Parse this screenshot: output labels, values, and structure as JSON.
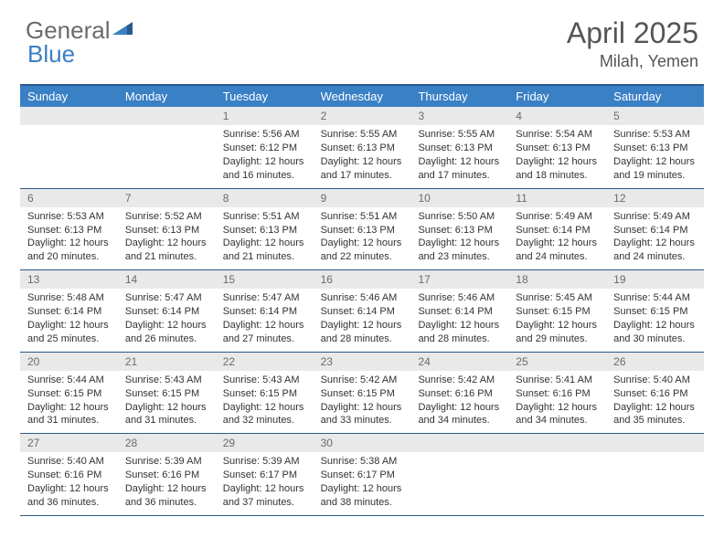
{
  "brand": {
    "name_a": "General",
    "name_b": "Blue"
  },
  "title": "April 2025",
  "location": "Milah, Yemen",
  "colors": {
    "header_bg": "#3a80c5",
    "header_text": "#ffffff",
    "border": "#2a5a8a",
    "daynum_bg": "#e9e9e9",
    "daynum_text": "#6b6b6b",
    "body_text": "#333333"
  },
  "dow": [
    "Sunday",
    "Monday",
    "Tuesday",
    "Wednesday",
    "Thursday",
    "Friday",
    "Saturday"
  ],
  "weeks": [
    [
      {
        "n": "",
        "sr": "",
        "ss": "",
        "dl": ""
      },
      {
        "n": "",
        "sr": "",
        "ss": "",
        "dl": ""
      },
      {
        "n": "1",
        "sr": "Sunrise: 5:56 AM",
        "ss": "Sunset: 6:12 PM",
        "dl": "Daylight: 12 hours and 16 minutes."
      },
      {
        "n": "2",
        "sr": "Sunrise: 5:55 AM",
        "ss": "Sunset: 6:13 PM",
        "dl": "Daylight: 12 hours and 17 minutes."
      },
      {
        "n": "3",
        "sr": "Sunrise: 5:55 AM",
        "ss": "Sunset: 6:13 PM",
        "dl": "Daylight: 12 hours and 17 minutes."
      },
      {
        "n": "4",
        "sr": "Sunrise: 5:54 AM",
        "ss": "Sunset: 6:13 PM",
        "dl": "Daylight: 12 hours and 18 minutes."
      },
      {
        "n": "5",
        "sr": "Sunrise: 5:53 AM",
        "ss": "Sunset: 6:13 PM",
        "dl": "Daylight: 12 hours and 19 minutes."
      }
    ],
    [
      {
        "n": "6",
        "sr": "Sunrise: 5:53 AM",
        "ss": "Sunset: 6:13 PM",
        "dl": "Daylight: 12 hours and 20 minutes."
      },
      {
        "n": "7",
        "sr": "Sunrise: 5:52 AM",
        "ss": "Sunset: 6:13 PM",
        "dl": "Daylight: 12 hours and 21 minutes."
      },
      {
        "n": "8",
        "sr": "Sunrise: 5:51 AM",
        "ss": "Sunset: 6:13 PM",
        "dl": "Daylight: 12 hours and 21 minutes."
      },
      {
        "n": "9",
        "sr": "Sunrise: 5:51 AM",
        "ss": "Sunset: 6:13 PM",
        "dl": "Daylight: 12 hours and 22 minutes."
      },
      {
        "n": "10",
        "sr": "Sunrise: 5:50 AM",
        "ss": "Sunset: 6:13 PM",
        "dl": "Daylight: 12 hours and 23 minutes."
      },
      {
        "n": "11",
        "sr": "Sunrise: 5:49 AM",
        "ss": "Sunset: 6:14 PM",
        "dl": "Daylight: 12 hours and 24 minutes."
      },
      {
        "n": "12",
        "sr": "Sunrise: 5:49 AM",
        "ss": "Sunset: 6:14 PM",
        "dl": "Daylight: 12 hours and 24 minutes."
      }
    ],
    [
      {
        "n": "13",
        "sr": "Sunrise: 5:48 AM",
        "ss": "Sunset: 6:14 PM",
        "dl": "Daylight: 12 hours and 25 minutes."
      },
      {
        "n": "14",
        "sr": "Sunrise: 5:47 AM",
        "ss": "Sunset: 6:14 PM",
        "dl": "Daylight: 12 hours and 26 minutes."
      },
      {
        "n": "15",
        "sr": "Sunrise: 5:47 AM",
        "ss": "Sunset: 6:14 PM",
        "dl": "Daylight: 12 hours and 27 minutes."
      },
      {
        "n": "16",
        "sr": "Sunrise: 5:46 AM",
        "ss": "Sunset: 6:14 PM",
        "dl": "Daylight: 12 hours and 28 minutes."
      },
      {
        "n": "17",
        "sr": "Sunrise: 5:46 AM",
        "ss": "Sunset: 6:14 PM",
        "dl": "Daylight: 12 hours and 28 minutes."
      },
      {
        "n": "18",
        "sr": "Sunrise: 5:45 AM",
        "ss": "Sunset: 6:15 PM",
        "dl": "Daylight: 12 hours and 29 minutes."
      },
      {
        "n": "19",
        "sr": "Sunrise: 5:44 AM",
        "ss": "Sunset: 6:15 PM",
        "dl": "Daylight: 12 hours and 30 minutes."
      }
    ],
    [
      {
        "n": "20",
        "sr": "Sunrise: 5:44 AM",
        "ss": "Sunset: 6:15 PM",
        "dl": "Daylight: 12 hours and 31 minutes."
      },
      {
        "n": "21",
        "sr": "Sunrise: 5:43 AM",
        "ss": "Sunset: 6:15 PM",
        "dl": "Daylight: 12 hours and 31 minutes."
      },
      {
        "n": "22",
        "sr": "Sunrise: 5:43 AM",
        "ss": "Sunset: 6:15 PM",
        "dl": "Daylight: 12 hours and 32 minutes."
      },
      {
        "n": "23",
        "sr": "Sunrise: 5:42 AM",
        "ss": "Sunset: 6:15 PM",
        "dl": "Daylight: 12 hours and 33 minutes."
      },
      {
        "n": "24",
        "sr": "Sunrise: 5:42 AM",
        "ss": "Sunset: 6:16 PM",
        "dl": "Daylight: 12 hours and 34 minutes."
      },
      {
        "n": "25",
        "sr": "Sunrise: 5:41 AM",
        "ss": "Sunset: 6:16 PM",
        "dl": "Daylight: 12 hours and 34 minutes."
      },
      {
        "n": "26",
        "sr": "Sunrise: 5:40 AM",
        "ss": "Sunset: 6:16 PM",
        "dl": "Daylight: 12 hours and 35 minutes."
      }
    ],
    [
      {
        "n": "27",
        "sr": "Sunrise: 5:40 AM",
        "ss": "Sunset: 6:16 PM",
        "dl": "Daylight: 12 hours and 36 minutes."
      },
      {
        "n": "28",
        "sr": "Sunrise: 5:39 AM",
        "ss": "Sunset: 6:16 PM",
        "dl": "Daylight: 12 hours and 36 minutes."
      },
      {
        "n": "29",
        "sr": "Sunrise: 5:39 AM",
        "ss": "Sunset: 6:17 PM",
        "dl": "Daylight: 12 hours and 37 minutes."
      },
      {
        "n": "30",
        "sr": "Sunrise: 5:38 AM",
        "ss": "Sunset: 6:17 PM",
        "dl": "Daylight: 12 hours and 38 minutes."
      },
      {
        "n": "",
        "sr": "",
        "ss": "",
        "dl": ""
      },
      {
        "n": "",
        "sr": "",
        "ss": "",
        "dl": ""
      },
      {
        "n": "",
        "sr": "",
        "ss": "",
        "dl": ""
      }
    ]
  ]
}
